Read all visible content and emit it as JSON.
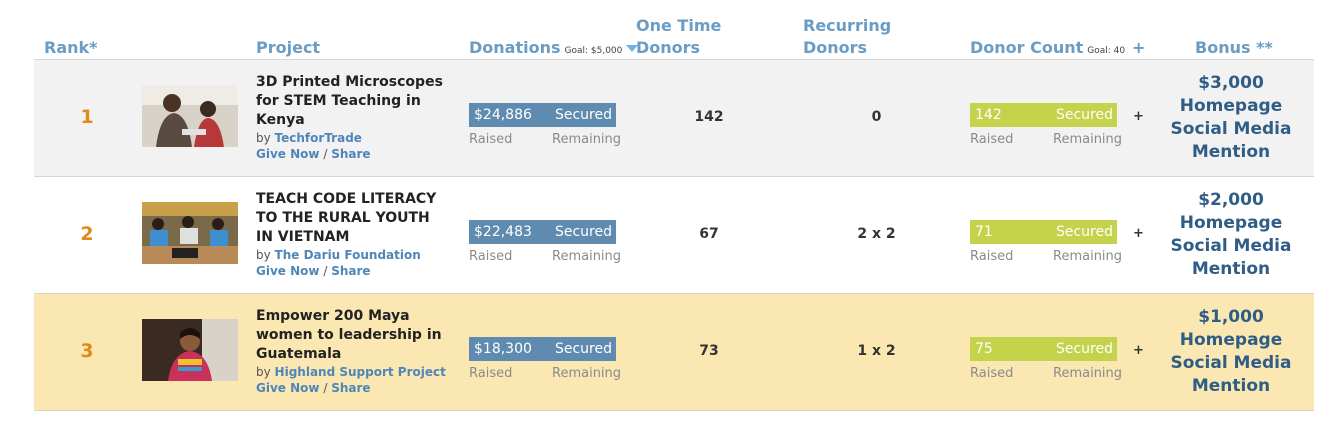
{
  "headers": {
    "rank": "Rank*",
    "project": "Project",
    "donations": "Donations",
    "donations_goal": "Goal: $5,000",
    "one_time_line1": "One Time",
    "one_time_line2": "Donors",
    "recurring_line1": "Recurring",
    "recurring_line2": "Donors",
    "donor_count": "Donor Count",
    "donor_count_goal": "Goal: 40",
    "plus": "+",
    "bonus": "Bonus **"
  },
  "labels": {
    "raised": "Raised",
    "remaining": "Remaining",
    "secured": "Secured",
    "by": "by",
    "give_now": "Give Now",
    "slash": "/",
    "share": "Share",
    "plus": "+"
  },
  "rows": [
    {
      "rank": "1",
      "title": "3D Printed Microscopes for STEM Teaching in Kenya",
      "org": "TechforTrade",
      "donations": "$24,886",
      "one_time": "142",
      "recurring": "0",
      "donor_count": "142",
      "bonus_amount": "$3,000",
      "bonus_line2": "Homepage",
      "bonus_line3": "Social Media",
      "bonus_line4": "Mention"
    },
    {
      "rank": "2",
      "title": "TEACH CODE LITERACY TO THE RURAL YOUTH IN VIETNAM",
      "org": "The Dariu Foundation",
      "donations": "$22,483",
      "one_time": "67",
      "recurring": "2 x 2",
      "donor_count": "71",
      "bonus_amount": "$2,000",
      "bonus_line2": "Homepage",
      "bonus_line3": "Social Media",
      "bonus_line4": "Mention"
    },
    {
      "rank": "3",
      "title": "Empower 200 Maya women to leadership in Guatemala",
      "org": "Highland Support Project",
      "donations": "$18,300",
      "one_time": "73",
      "recurring": "1 x 2",
      "donor_count": "75",
      "bonus_amount": "$1,000",
      "bonus_line2": "Homepage",
      "bonus_line3": "Social Media",
      "bonus_line4": "Mention"
    }
  ],
  "colors": {
    "header_blue": "#6a9cc4",
    "rank_orange": "#e08a1e",
    "donations_bar": "#5f8bb0",
    "donor_count_bar": "#c4d24c",
    "highlight_row": "#fae7b2",
    "bonus_text": "#2f5d86"
  }
}
